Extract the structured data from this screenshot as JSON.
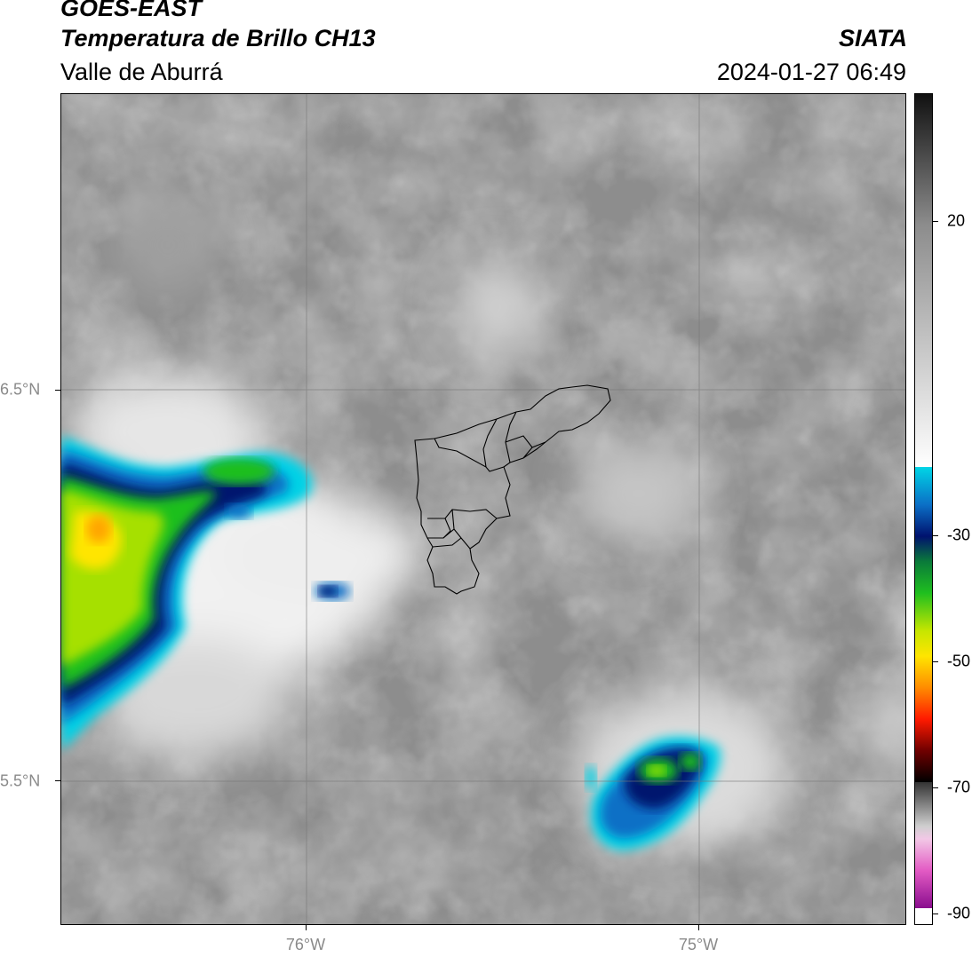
{
  "header": {
    "satellite": "GOES-EAST",
    "product": "Temperatura de Brillo CH13",
    "region": "Valle de Aburrá",
    "organization": "SIATA",
    "datetime": "2024-01-27 06:49"
  },
  "map": {
    "lat_ticks": [
      "6.5°N",
      "5.5°N"
    ],
    "lon_ticks": [
      "76°W",
      "75°W"
    ],
    "gridlines": true,
    "boundary": "Valle de Aburrá municipalities outline"
  },
  "colorbar": {
    "ticks": [
      "20",
      "-30",
      "-50",
      "-70",
      "-90"
    ],
    "colors": {
      "white_top": "#111111",
      "gray_mid": "#8c8c8c",
      "cyan": "#00d5e6",
      "navy": "#00126e",
      "green": "#1fbf1f",
      "yellow": "#ffe500",
      "red": "#ff1a00",
      "black": "#000000",
      "pink": "#e35bc4",
      "purple": "#8a0d8e"
    }
  }
}
